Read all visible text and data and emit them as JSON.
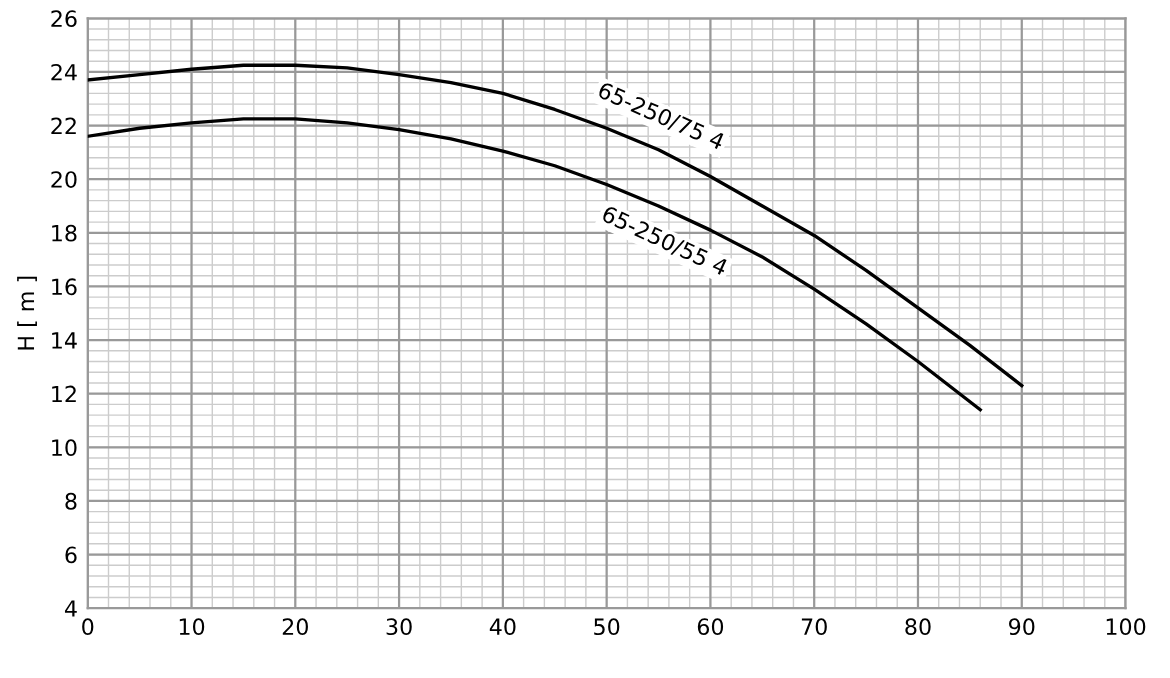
{
  "chart_data": {
    "type": "line",
    "ylabel": "H [ m ]",
    "xlim": [
      0,
      100
    ],
    "xticks": [
      0,
      10,
      20,
      30,
      40,
      50,
      60,
      70,
      80,
      90,
      100
    ],
    "ylim": [
      4,
      26
    ],
    "yticks": [
      4,
      6,
      8,
      10,
      12,
      14,
      16,
      18,
      20,
      22,
      24,
      26
    ],
    "grid": true,
    "marker": "none",
    "line_style": "solid",
    "series": [
      {
        "color": "#000000",
        "x": [
          0,
          5,
          10,
          15,
          20,
          25,
          30,
          35,
          40,
          45,
          50,
          55,
          60,
          65,
          70,
          75,
          80,
          85,
          90
        ],
        "values": [
          23.7,
          23.9,
          24.1,
          24.25,
          24.25,
          24.15,
          23.9,
          23.6,
          23.2,
          22.6,
          21.9,
          21.1,
          20.1,
          19.0,
          17.9,
          16.6,
          15.2,
          13.8,
          12.3
        ]
      },
      {
        "color": "#000000",
        "x": [
          0,
          5,
          10,
          15,
          20,
          25,
          30,
          35,
          40,
          45,
          50,
          55,
          60,
          65,
          70,
          75,
          80,
          86
        ],
        "values": [
          21.6,
          21.9,
          22.1,
          22.25,
          22.25,
          22.1,
          21.85,
          21.5,
          21.05,
          20.5,
          19.8,
          19.0,
          18.1,
          17.1,
          15.9,
          14.6,
          13.2,
          11.4
        ]
      }
    ],
    "annotations": [
      "65-250/75 4",
      "65-250/55 4"
    ]
  }
}
